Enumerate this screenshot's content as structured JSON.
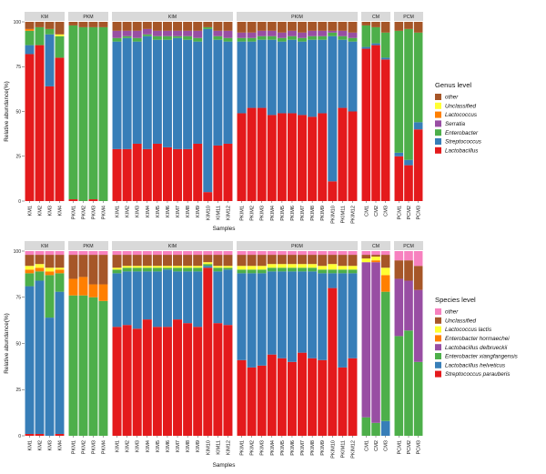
{
  "chart_data": [
    {
      "type": "bar",
      "stacked": true,
      "title": "",
      "xlabel": "Samples",
      "ylabel": "Relative abundance(%)",
      "ylim": [
        0,
        100
      ],
      "yticks": [
        "0",
        "25",
        "50",
        "75",
        "100"
      ],
      "legend_title": "Genus level",
      "legend_placement": "right",
      "layers": [
        "Lactobacillus",
        "Streptococcus",
        "Enterobacter",
        "Serratia",
        "Lactococcus",
        "Unclassified",
        "other"
      ],
      "legend_order": [
        "other",
        "Unclassified",
        "Lactococcus",
        "Serratia",
        "Enterobacter",
        "Streptococcus",
        "Lactobacillus"
      ],
      "colors": {
        "Lactobacillus": "#e41a1c",
        "Streptococcus": "#377eb8",
        "Enterobacter": "#4daf4a",
        "Serratia": "#984ea3",
        "Lactococcus": "#ff7f00",
        "Unclassified": "#ffff33",
        "other": "#a65628"
      },
      "groups": [
        {
          "name": "KM",
          "samples": [
            "KM1",
            "KM2",
            "KM3",
            "KM4"
          ],
          "values": [
            [
              82,
              5,
              8,
              0,
              1,
              0,
              4
            ],
            [
              87,
              0,
              10,
              0,
              0,
              0,
              3
            ],
            [
              64,
              29,
              3,
              0,
              0,
              0,
              4
            ],
            [
              80,
              0,
              12,
              0,
              0,
              1,
              7
            ]
          ]
        },
        {
          "name": "PKM",
          "samples": [
            "PKM1",
            "PKM2",
            "PKM3",
            "PKM4"
          ],
          "values": [
            [
              1,
              0,
              97,
              0,
              0,
              0,
              2
            ],
            [
              0,
              0,
              97,
              0,
              0,
              0,
              3
            ],
            [
              1,
              0,
              96,
              0,
              0,
              0,
              3
            ],
            [
              0,
              0,
              97,
              0,
              0,
              0,
              3
            ]
          ]
        },
        {
          "name": "KIM",
          "samples": [
            "KIM1",
            "KIM2",
            "KIM3",
            "KIM4",
            "KIM5",
            "KIM6",
            "KIM7",
            "KIM8",
            "KIM9",
            "KIM10",
            "KIM11",
            "KIM12"
          ],
          "values": [
            [
              29,
              60,
              2,
              4,
              0,
              0,
              5
            ],
            [
              29,
              62,
              1,
              3,
              0,
              0,
              5
            ],
            [
              32,
              57,
              2,
              4,
              0,
              0,
              5
            ],
            [
              29,
              63,
              1,
              3,
              0,
              0,
              4
            ],
            [
              32,
              58,
              2,
              3,
              0,
              0,
              5
            ],
            [
              30,
              60,
              2,
              3,
              0,
              0,
              5
            ],
            [
              29,
              62,
              1,
              3,
              0,
              0,
              5
            ],
            [
              29,
              61,
              2,
              3,
              0,
              0,
              5
            ],
            [
              32,
              57,
              2,
              4,
              0,
              0,
              5
            ],
            [
              5,
              91,
              1,
              0,
              0,
              0,
              3
            ],
            [
              31,
              59,
              2,
              3,
              0,
              0,
              5
            ],
            [
              32,
              57,
              2,
              4,
              0,
              0,
              5
            ]
          ]
        },
        {
          "name": "PKIM",
          "samples": [
            "PKIM1",
            "PKIM2",
            "PKIM3",
            "PKIM4",
            "PKIM5",
            "PKIM6",
            "PKIM7",
            "PKIM8",
            "PKIM9",
            "PKIM10",
            "PKIM11",
            "PKIM12"
          ],
          "values": [
            [
              49,
              40,
              2,
              3,
              0,
              0,
              6
            ],
            [
              52,
              37,
              2,
              3,
              0,
              0,
              6
            ],
            [
              52,
              38,
              2,
              3,
              0,
              0,
              5
            ],
            [
              48,
              42,
              2,
              3,
              0,
              0,
              5
            ],
            [
              49,
              40,
              2,
              3,
              0,
              0,
              6
            ],
            [
              49,
              41,
              2,
              3,
              0,
              0,
              5
            ],
            [
              48,
              41,
              2,
              3,
              0,
              0,
              6
            ],
            [
              47,
              43,
              2,
              3,
              0,
              0,
              5
            ],
            [
              49,
              41,
              2,
              3,
              0,
              0,
              5
            ],
            [
              11,
              81,
              2,
              1,
              0,
              0,
              5
            ],
            [
              52,
              38,
              2,
              3,
              0,
              0,
              5
            ],
            [
              50,
              39,
              2,
              3,
              0,
              0,
              6
            ]
          ]
        },
        {
          "name": "CM",
          "samples": [
            "CM1",
            "CM2",
            "CM3"
          ],
          "values": [
            [
              85,
              1,
              12,
              0,
              0,
              0,
              2
            ],
            [
              87,
              1,
              9,
              0,
              0,
              0,
              3
            ],
            [
              79,
              1,
              14,
              0,
              0,
              0,
              6
            ]
          ]
        },
        {
          "name": "PCM",
          "samples": [
            "PCM1",
            "PCM2",
            "PCM3"
          ],
          "values": [
            [
              25,
              2,
              68,
              0,
              0,
              0,
              5
            ],
            [
              20,
              3,
              73,
              0,
              0,
              0,
              4
            ],
            [
              40,
              4,
              50,
              0,
              0,
              0,
              6
            ]
          ]
        }
      ]
    },
    {
      "type": "bar",
      "stacked": true,
      "title": "",
      "xlabel": "Samples",
      "ylabel": "Relative abundance(%)",
      "ylim": [
        0,
        100
      ],
      "yticks": [
        "0",
        "25",
        "50",
        "75",
        "100"
      ],
      "legend_title": "Species level",
      "legend_placement": "right",
      "layers": [
        "Streptococcus parauberis",
        "Lactobacillus helveticus",
        "Enterobacter xiangfangensis",
        "Lactobacillus delbrueckii",
        "Enterobacter hormaechei",
        "Lactococcus lactis",
        "Unclassified",
        "other"
      ],
      "legend_order": [
        "other",
        "Unclassified",
        "Lactococcus lactis",
        "Enterobacter hormaechei",
        "Lactobacillus delbrueckii",
        "Enterobacter xiangfangensis",
        "Lactobacillus helveticus",
        "Streptococcus parauberis"
      ],
      "colors": {
        "Streptococcus parauberis": "#e41a1c",
        "Lactobacillus helveticus": "#377eb8",
        "Enterobacter xiangfangensis": "#4daf4a",
        "Lactobacillus delbrueckii": "#984ea3",
        "Enterobacter hormaechei": "#ff7f00",
        "Lactococcus lactis": "#ffff33",
        "Unclassified": "#a65628",
        "other": "#f781bf"
      },
      "groups": [
        {
          "name": "KM",
          "samples": [
            "KM1",
            "KM2",
            "KM3",
            "KM4"
          ],
          "values": [
            [
              1,
              80,
              7,
              0,
              2,
              2,
              6,
              2
            ],
            [
              1,
              83,
              5,
              0,
              2,
              2,
              5,
              2
            ],
            [
              0,
              64,
              23,
              0,
              2,
              2,
              7,
              2
            ],
            [
              1,
              77,
              10,
              0,
              2,
              1,
              7,
              2
            ]
          ]
        },
        {
          "name": "PKM",
          "samples": [
            "PKM1",
            "PKM2",
            "PKM3",
            "PKM4"
          ],
          "values": [
            [
              0,
              0,
              76,
              0,
              9,
              0,
              13,
              2
            ],
            [
              0,
              0,
              76,
              0,
              10,
              0,
              12,
              2
            ],
            [
              0,
              0,
              75,
              0,
              7,
              0,
              16,
              2
            ],
            [
              0,
              0,
              73,
              0,
              9,
              0,
              16,
              2
            ]
          ]
        },
        {
          "name": "KIM",
          "samples": [
            "KIM1",
            "KIM2",
            "KIM3",
            "KIM4",
            "KIM5",
            "KIM6",
            "KIM7",
            "KIM8",
            "KIM9",
            "KIM10",
            "KIM11",
            "KIM12"
          ],
          "values": [
            [
              59,
              29,
              2,
              0,
              0,
              1,
              7,
              2
            ],
            [
              60,
              29,
              2,
              0,
              0,
              1,
              6,
              2
            ],
            [
              58,
              31,
              2,
              0,
              0,
              1,
              6,
              2
            ],
            [
              63,
              26,
              2,
              0,
              0,
              1,
              6,
              2
            ],
            [
              59,
              30,
              2,
              0,
              0,
              1,
              6,
              2
            ],
            [
              59,
              31,
              1,
              0,
              0,
              1,
              6,
              2
            ],
            [
              63,
              26,
              2,
              0,
              0,
              1,
              6,
              2
            ],
            [
              61,
              28,
              2,
              0,
              0,
              1,
              6,
              2
            ],
            [
              59,
              30,
              2,
              0,
              0,
              1,
              6,
              2
            ],
            [
              91,
              1,
              1,
              0,
              0,
              1,
              4,
              2
            ],
            [
              61,
              28,
              2,
              0,
              0,
              1,
              6,
              2
            ],
            [
              60,
              30,
              1,
              0,
              0,
              1,
              6,
              2
            ]
          ]
        },
        {
          "name": "PKIM",
          "samples": [
            "PKIM1",
            "PKIM2",
            "PKIM3",
            "PKIM4",
            "PKIM5",
            "PKIM6",
            "PKIM7",
            "PKIM8",
            "PKIM9",
            "PKIM10",
            "PKIM11",
            "PKIM12"
          ],
          "values": [
            [
              41,
              47,
              2,
              0,
              0,
              2,
              6,
              2
            ],
            [
              37,
              51,
              2,
              0,
              0,
              2,
              6,
              2
            ],
            [
              38,
              50,
              2,
              0,
              0,
              2,
              6,
              2
            ],
            [
              44,
              45,
              2,
              0,
              0,
              2,
              5,
              2
            ],
            [
              42,
              47,
              2,
              0,
              0,
              2,
              5,
              2
            ],
            [
              40,
              49,
              2,
              0,
              0,
              2,
              5,
              2
            ],
            [
              45,
              44,
              2,
              0,
              0,
              2,
              5,
              2
            ],
            [
              42,
              47,
              2,
              0,
              0,
              2,
              5,
              2
            ],
            [
              41,
              47,
              2,
              0,
              0,
              2,
              6,
              2
            ],
            [
              80,
              8,
              2,
              0,
              0,
              3,
              5,
              2
            ],
            [
              37,
              51,
              2,
              0,
              0,
              2,
              6,
              2
            ],
            [
              42,
              46,
              2,
              0,
              0,
              2,
              6,
              2
            ]
          ]
        },
        {
          "name": "CM",
          "samples": [
            "CM1",
            "CM2",
            "CM3"
          ],
          "values": [
            [
              0,
              0,
              10,
              84,
              0,
              2,
              2,
              2
            ],
            [
              0,
              0,
              7,
              87,
              1,
              2,
              1,
              2
            ],
            [
              0,
              8,
              70,
              0,
              9,
              4,
              7,
              2
            ]
          ]
        },
        {
          "name": "PCM",
          "samples": [
            "PCM1",
            "PCM2",
            "PCM3"
          ],
          "values": [
            [
              0,
              0,
              54,
              31,
              0,
              0,
              10,
              5
            ],
            [
              0,
              0,
              57,
              27,
              0,
              0,
              11,
              5
            ],
            [
              0,
              0,
              40,
              39,
              0,
              0,
              13,
              8
            ]
          ]
        }
      ]
    }
  ]
}
